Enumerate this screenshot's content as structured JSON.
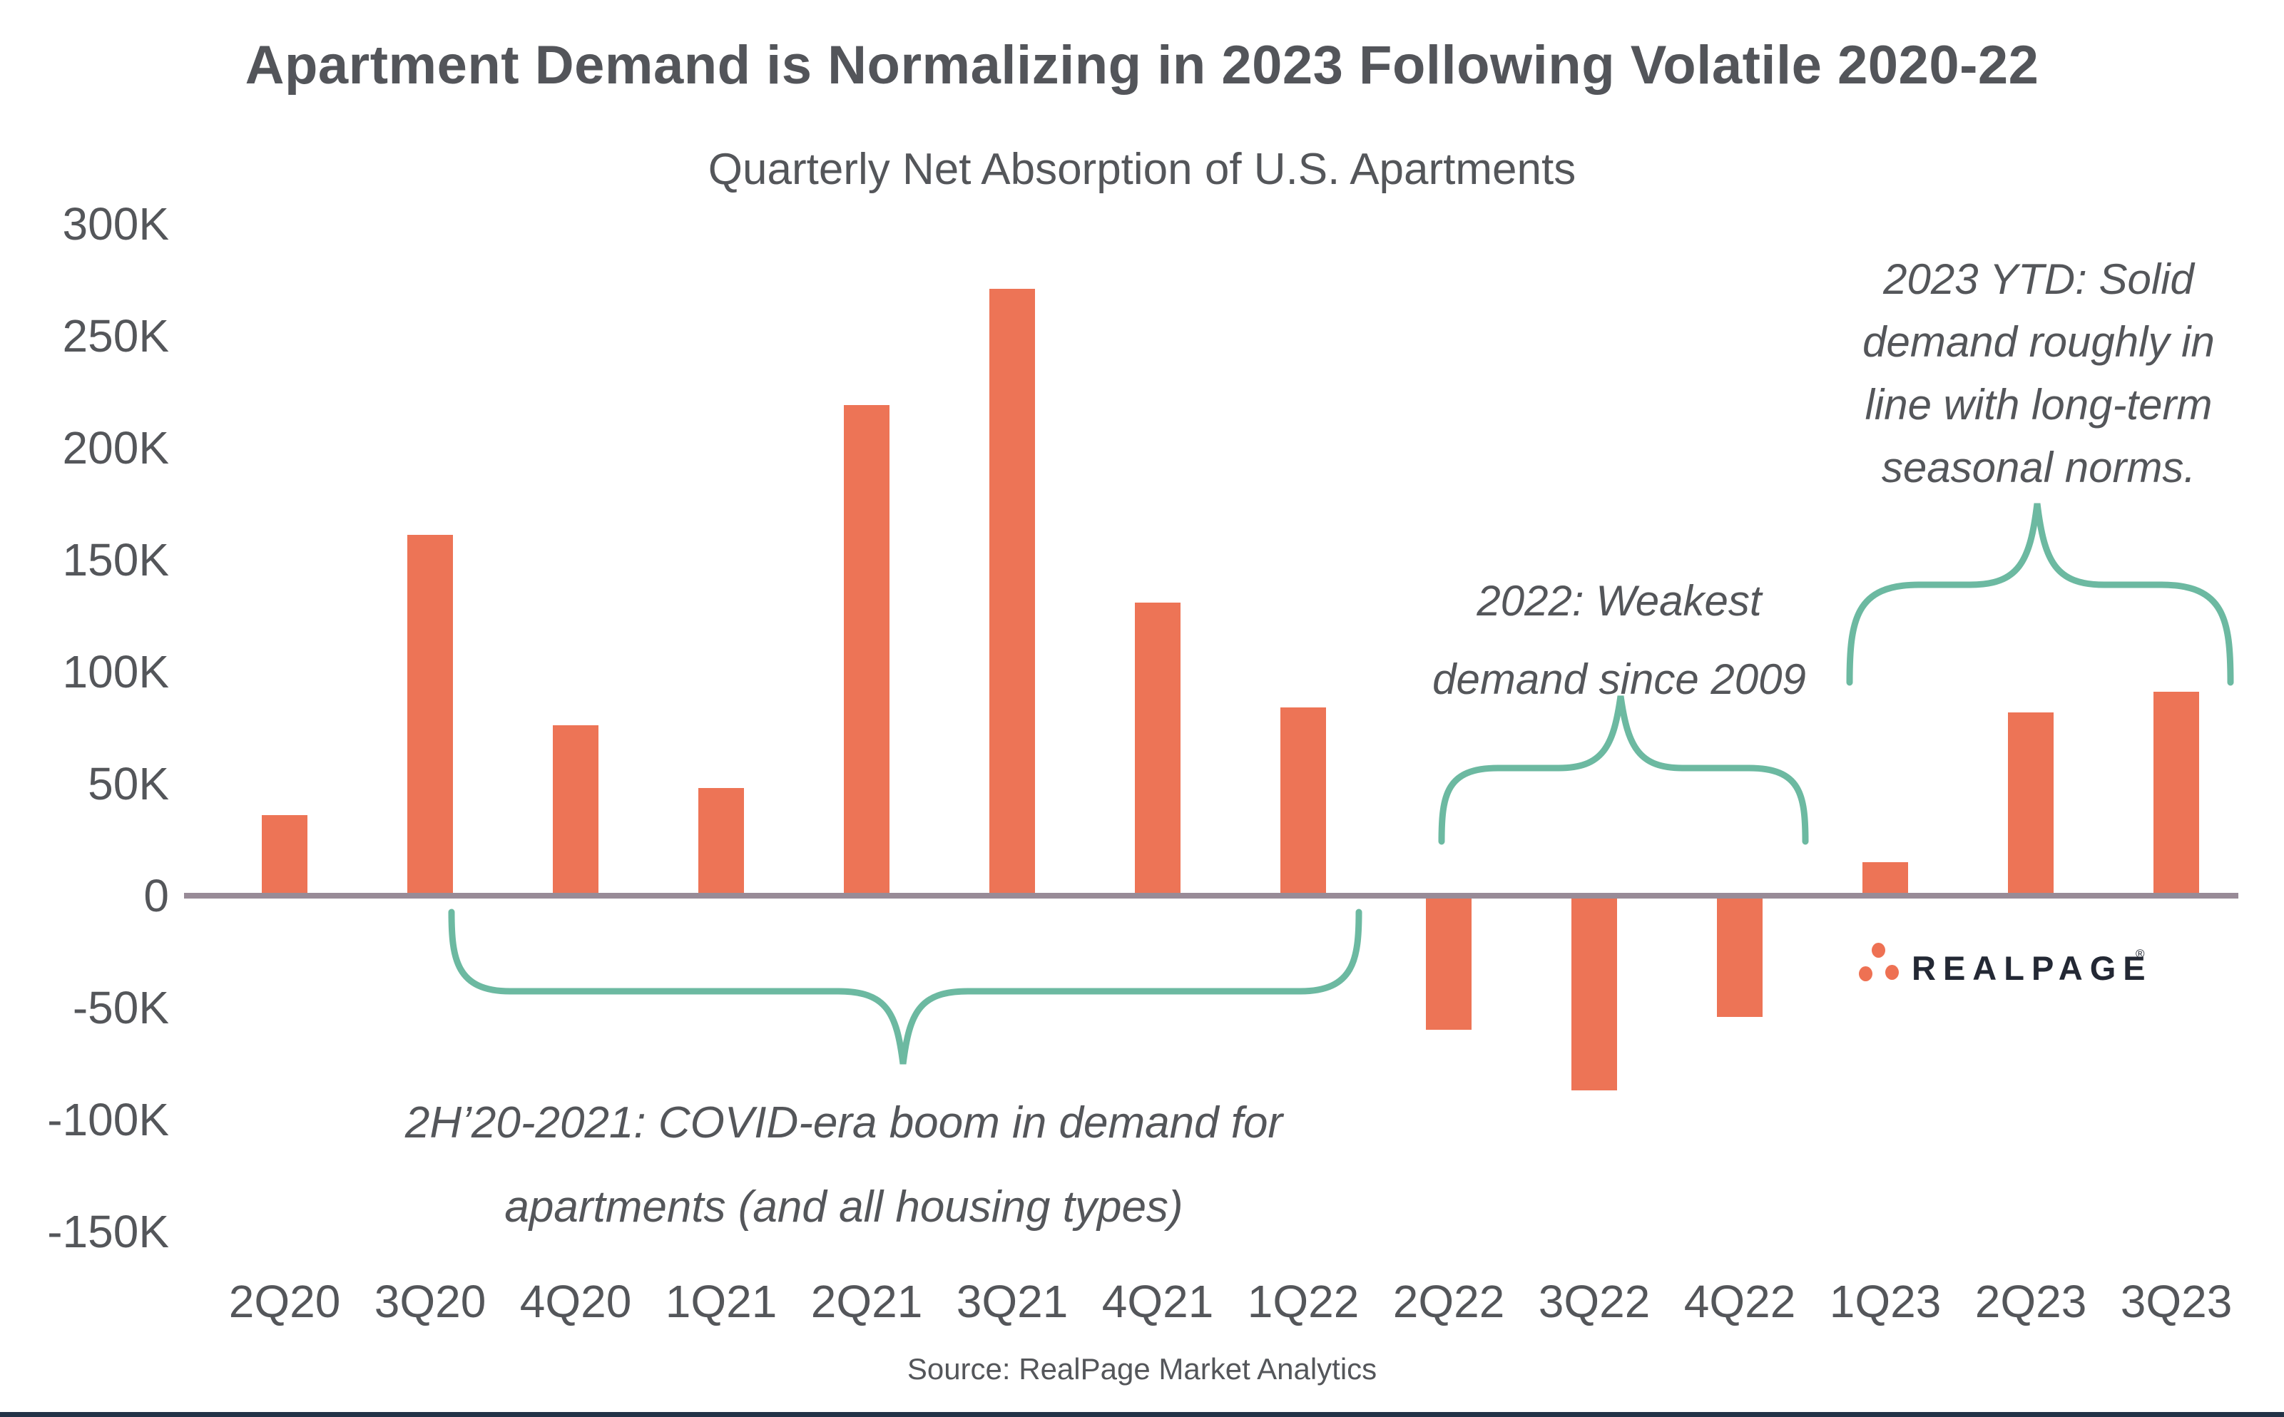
{
  "header": {
    "title": "Apartment Demand is Normalizing in 2023 Following Volatile 2020-22",
    "subtitle": "Quarterly Net Absorption of U.S. Apartments"
  },
  "chart_data": {
    "type": "bar",
    "title": "Apartment Demand is Normalizing in 2023 Following Volatile 2020-22",
    "subtitle": "Quarterly Net Absorption of U.S. Apartments",
    "categories": [
      "2Q20",
      "3Q20",
      "4Q20",
      "1Q21",
      "2Q21",
      "3Q21",
      "4Q21",
      "1Q22",
      "2Q22",
      "3Q22",
      "4Q22",
      "1Q23",
      "2Q23",
      "3Q23"
    ],
    "values_thousands": [
      36,
      161,
      76,
      48,
      219,
      271,
      131,
      84,
      -60,
      -87,
      -54,
      15,
      82,
      91
    ],
    "bar_color": "#ED7456",
    "y_axis": {
      "ylim_thousands": [
        -150,
        300
      ],
      "gridlines": false,
      "ticks": [
        {
          "label": "300K",
          "value": 300
        },
        {
          "label": "250K",
          "value": 250
        },
        {
          "label": "200K",
          "value": 200
        },
        {
          "label": "150K",
          "value": 150
        },
        {
          "label": "100K",
          "value": 100
        },
        {
          "label": "50K",
          "value": 50
        },
        {
          "label": "0",
          "value": 0
        },
        {
          "label": "-50K",
          "value": -50
        },
        {
          "label": "-100K",
          "value": -100
        },
        {
          "label": "-150K",
          "value": -150
        }
      ]
    },
    "annotations": [
      "2H’20-2021: COVID-era boom in demand for apartments (and all housing types)",
      "2022: Weakest demand since 2009",
      "2023 YTD: Solid demand roughly in line with long-term seasonal norms."
    ],
    "legend": null
  },
  "annotations": {
    "covid": {
      "line1": "2H’20-2021: COVID-era boom in demand for",
      "line2": "apartments (and all housing types)"
    },
    "y2022": {
      "line1": "2022: Weakest",
      "line2": "demand since 2009"
    },
    "y2023": {
      "line1": "2023 YTD: Solid",
      "line2": "demand roughly in",
      "line3": "line with long-term",
      "line4": "seasonal norms."
    }
  },
  "logo": {
    "wordmark": "REALPAGE",
    "registered": "®"
  },
  "source": {
    "text": "Source: RealPage Market Analytics"
  },
  "colors": {
    "bar_orange": "#ED7456",
    "brace_teal": "#6CB9A1",
    "axis_mauve": "#988B97",
    "text_gray": "#54565A",
    "logo_navy": "#232834",
    "logo_orange": "#EE7153",
    "bottom_strip_navy": "#223247"
  }
}
